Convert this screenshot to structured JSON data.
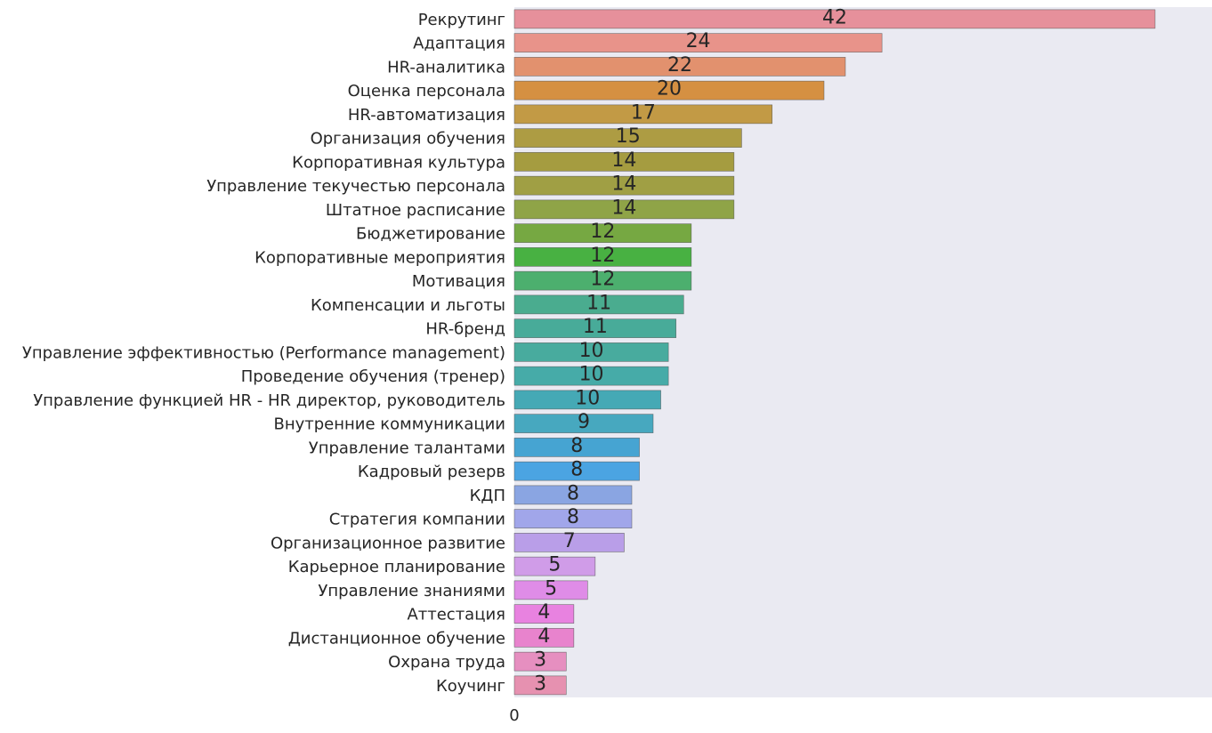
{
  "chart_data": {
    "type": "bar",
    "orientation": "horizontal",
    "categories": [
      "Рекрутинг",
      "Адаптация",
      "HR-аналитика",
      "Оценка персонала",
      "HR-автоматизация",
      "Организация обучения",
      "Корпоративная культура",
      "Управление текучестью персонала",
      "Штатное расписание",
      "Бюджетирование",
      "Корпоративные мероприятия",
      "Мотивация",
      "Компенсации и льготы",
      "HR-бренд",
      "Управление эффективностью (Performance management)",
      "Проведение обучения (тренер)",
      "Управление функцией HR - HR директор, руководитель",
      "Внутренние коммуникации",
      "Управление талантами",
      "Кадровый резерв",
      "КДП",
      "Стратегия компании",
      "Организационное развитие",
      "Карьерное планирование",
      "Управление знаниями",
      "Аттестация",
      "Дистанционное обучение",
      "Охрана труда",
      "Коучинг"
    ],
    "data_labels": [
      "42",
      "24",
      "22",
      "20",
      "17",
      "15",
      "14",
      "14",
      "14",
      "12",
      "12",
      "12",
      "11",
      "11",
      "10",
      "10",
      "10",
      "9",
      "8",
      "8",
      "8",
      "8",
      "7",
      "5",
      "5",
      "4",
      "4",
      "3",
      "3"
    ],
    "bar_lengths": [
      42,
      24.1,
      21.7,
      20.3,
      16.9,
      14.9,
      14.4,
      14.4,
      14.4,
      11.6,
      11.6,
      11.6,
      11.1,
      10.6,
      10.1,
      10.1,
      9.6,
      9.1,
      8.2,
      8.2,
      7.7,
      7.7,
      7.2,
      5.3,
      4.8,
      3.9,
      3.9,
      3.4,
      3.4
    ],
    "x_ticks": [
      "0"
    ],
    "xlim": [
      0,
      45.4
    ],
    "title": "",
    "xlabel": "",
    "ylabel": "",
    "grid": false,
    "colors": [
      "#e6909b",
      "#e8938a",
      "#e2916e",
      "#d59042",
      "#c29a45",
      "#ad9c43",
      "#a59c40",
      "#a09f44",
      "#8fa447",
      "#76a842",
      "#48b142",
      "#4caf6e",
      "#4aac8f",
      "#48ab99",
      "#48ab9e",
      "#46aba8",
      "#45a9b5",
      "#47a8bf",
      "#46a4d2",
      "#4ba4e2",
      "#8aa5e2",
      "#a1a6ea",
      "#b99ee8",
      "#d09ce8",
      "#df8ce7",
      "#e882e0",
      "#e883cd",
      "#e68fc0",
      "#e691b0"
    ],
    "background": "#eaeaf2"
  }
}
